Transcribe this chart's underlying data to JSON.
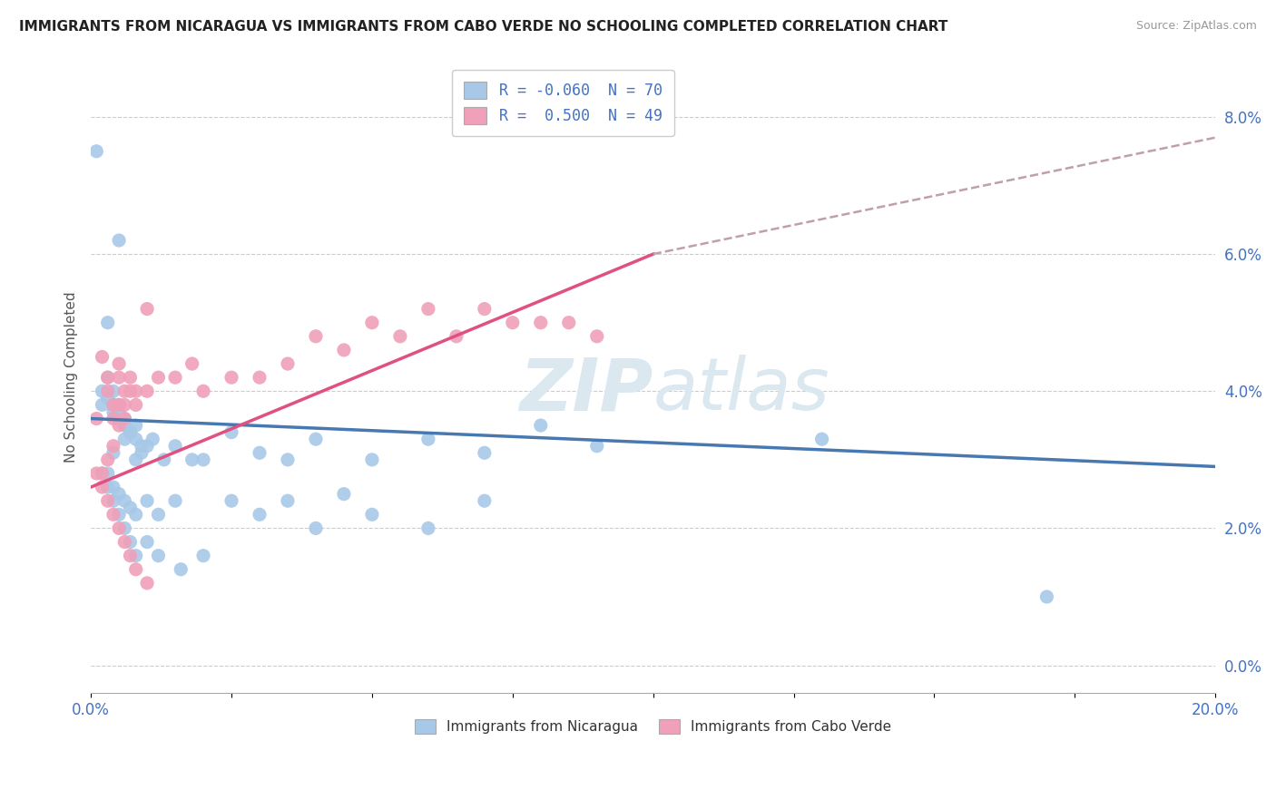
{
  "title": "IMMIGRANTS FROM NICARAGUA VS IMMIGRANTS FROM CABO VERDE NO SCHOOLING COMPLETED CORRELATION CHART",
  "source": "Source: ZipAtlas.com",
  "ylabel": "No Schooling Completed",
  "legend_r1": "R = -0.060",
  "legend_n1": "N = 70",
  "legend_r2": "R =  0.500",
  "legend_n2": "N = 49",
  "blue_color": "#a8c8e8",
  "pink_color": "#f0a0b8",
  "blue_line_color": "#4878b0",
  "pink_line_color": "#e05080",
  "dashed_line_color": "#c0a0a8",
  "title_color": "#222222",
  "axis_label_color": "#4472c4",
  "legend_r_color": "#4472c4",
  "watermark_color": "#dce8f0",
  "xlim": [
    0.0,
    0.2
  ],
  "ylim": [
    -0.004,
    0.088
  ],
  "yticks": [
    0.0,
    0.02,
    0.04,
    0.06,
    0.08
  ],
  "xticks": [
    0.0,
    0.025,
    0.05,
    0.075,
    0.1,
    0.125,
    0.15,
    0.175,
    0.2
  ],
  "blue_trend_x": [
    0.0,
    0.2
  ],
  "blue_trend_y": [
    0.036,
    0.029
  ],
  "pink_trend_x": [
    0.0,
    0.1
  ],
  "pink_trend_y": [
    0.026,
    0.06
  ],
  "dash_trend_x": [
    0.1,
    0.2
  ],
  "dash_trend_y": [
    0.06,
    0.077
  ],
  "blue_x": [
    0.005,
    0.008,
    0.001,
    0.003,
    0.002,
    0.004,
    0.003,
    0.005,
    0.002,
    0.004,
    0.003,
    0.006,
    0.004,
    0.007,
    0.005,
    0.008,
    0.006,
    0.009,
    0.007,
    0.01,
    0.004,
    0.006,
    0.008,
    0.005,
    0.007,
    0.009,
    0.011,
    0.013,
    0.015,
    0.018,
    0.02,
    0.025,
    0.03,
    0.035,
    0.04,
    0.05,
    0.06,
    0.07,
    0.08,
    0.09,
    0.003,
    0.004,
    0.005,
    0.006,
    0.007,
    0.008,
    0.01,
    0.012,
    0.015,
    0.02,
    0.025,
    0.03,
    0.035,
    0.04,
    0.045,
    0.05,
    0.06,
    0.07,
    0.13,
    0.17,
    0.002,
    0.003,
    0.004,
    0.005,
    0.006,
    0.007,
    0.008,
    0.01,
    0.012,
    0.016
  ],
  "blue_y": [
    0.036,
    0.035,
    0.075,
    0.05,
    0.038,
    0.04,
    0.042,
    0.038,
    0.04,
    0.037,
    0.039,
    0.036,
    0.038,
    0.034,
    0.037,
    0.033,
    0.035,
    0.032,
    0.034,
    0.032,
    0.031,
    0.033,
    0.03,
    0.062,
    0.034,
    0.031,
    0.033,
    0.03,
    0.032,
    0.03,
    0.03,
    0.034,
    0.031,
    0.03,
    0.033,
    0.03,
    0.033,
    0.031,
    0.035,
    0.032,
    0.028,
    0.026,
    0.025,
    0.024,
    0.023,
    0.022,
    0.024,
    0.022,
    0.024,
    0.016,
    0.024,
    0.022,
    0.024,
    0.02,
    0.025,
    0.022,
    0.02,
    0.024,
    0.033,
    0.01,
    0.028,
    0.026,
    0.024,
    0.022,
    0.02,
    0.018,
    0.016,
    0.018,
    0.016,
    0.014
  ],
  "pink_x": [
    0.001,
    0.002,
    0.003,
    0.004,
    0.005,
    0.002,
    0.003,
    0.004,
    0.005,
    0.006,
    0.003,
    0.004,
    0.005,
    0.006,
    0.007,
    0.008,
    0.005,
    0.006,
    0.007,
    0.008,
    0.01,
    0.012,
    0.015,
    0.018,
    0.02,
    0.025,
    0.03,
    0.035,
    0.04,
    0.045,
    0.05,
    0.055,
    0.06,
    0.065,
    0.07,
    0.075,
    0.08,
    0.085,
    0.09,
    0.01,
    0.001,
    0.002,
    0.003,
    0.004,
    0.005,
    0.006,
    0.007,
    0.008,
    0.01
  ],
  "pink_y": [
    0.036,
    0.028,
    0.04,
    0.032,
    0.038,
    0.045,
    0.03,
    0.036,
    0.035,
    0.04,
    0.042,
    0.038,
    0.042,
    0.038,
    0.042,
    0.04,
    0.044,
    0.036,
    0.04,
    0.038,
    0.04,
    0.042,
    0.042,
    0.044,
    0.04,
    0.042,
    0.042,
    0.044,
    0.048,
    0.046,
    0.05,
    0.048,
    0.052,
    0.048,
    0.052,
    0.05,
    0.05,
    0.05,
    0.048,
    0.052,
    0.028,
    0.026,
    0.024,
    0.022,
    0.02,
    0.018,
    0.016,
    0.014,
    0.012
  ]
}
